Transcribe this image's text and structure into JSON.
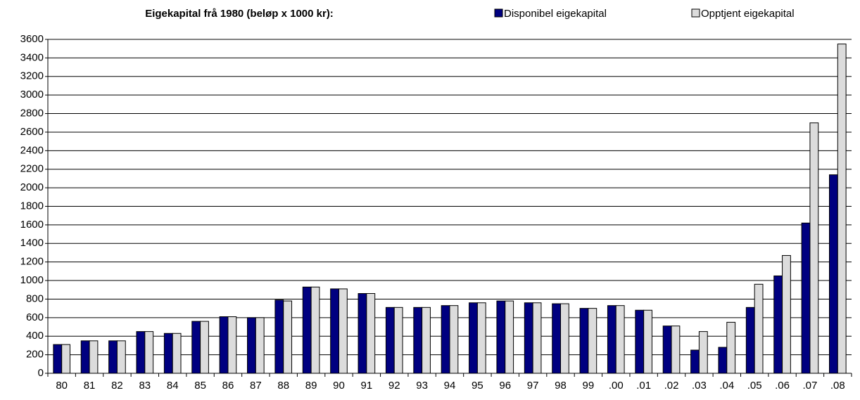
{
  "chart_data": {
    "type": "bar",
    "title": "Eigekapital frå 1980 (beløp x 1000 kr):",
    "categories": [
      "80",
      "81",
      "82",
      "83",
      "84",
      "85",
      "86",
      "87",
      "88",
      "89",
      "90",
      "91",
      "92",
      "93",
      "94",
      "95",
      "96",
      "97",
      "98",
      "99",
      ".00",
      ".01",
      ".02",
      ".03",
      ".04",
      ".05",
      ".06",
      ".07",
      ".08"
    ],
    "series": [
      {
        "name": "Disponibel eigekapital",
        "color": "#000080",
        "values": [
          310,
          350,
          350,
          450,
          430,
          560,
          610,
          600,
          790,
          930,
          910,
          860,
          710,
          710,
          730,
          760,
          780,
          760,
          750,
          700,
          730,
          680,
          510,
          250,
          280,
          710,
          1050,
          1620,
          2140
        ]
      },
      {
        "name": "Opptjent eigekapital",
        "color": "#dcdcdc",
        "values": [
          310,
          350,
          350,
          450,
          430,
          560,
          610,
          600,
          780,
          930,
          910,
          860,
          710,
          710,
          730,
          760,
          780,
          760,
          750,
          700,
          730,
          680,
          510,
          450,
          550,
          960,
          1270,
          2700,
          3550
        ]
      }
    ],
    "ylim": [
      0,
      3600
    ],
    "yticks": [
      0,
      200,
      400,
      600,
      800,
      1000,
      1200,
      1400,
      1600,
      1800,
      2000,
      2200,
      2400,
      2600,
      2800,
      3000,
      3200,
      3400,
      3600
    ],
    "grid": true,
    "legend": "top-right"
  }
}
